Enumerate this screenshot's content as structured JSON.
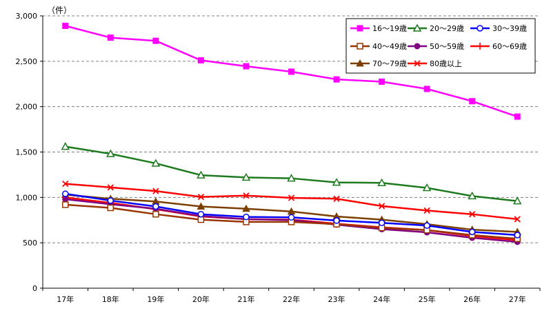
{
  "chart_data": {
    "type": "line",
    "unit_label": "（件）",
    "categories": [
      "17年",
      "18年",
      "19年",
      "20年",
      "21年",
      "22年",
      "23年",
      "24年",
      "25年",
      "26年",
      "27年"
    ],
    "ylim": [
      0,
      3000
    ],
    "yticks": [
      0,
      500,
      1000,
      1500,
      2000,
      2500,
      3000
    ],
    "ytick_labels": [
      "0",
      "500",
      "1,000",
      "1,500",
      "2,000",
      "2,500",
      "3,000"
    ],
    "grid": true,
    "legend_placement": "top-right",
    "series": [
      {
        "name": "16～19歳",
        "color": "#ff00ff",
        "marker": "square-filled",
        "values": [
          2890,
          2760,
          2725,
          2510,
          2445,
          2385,
          2300,
          2275,
          2195,
          2060,
          1890
        ]
      },
      {
        "name": "20～29歳",
        "color": "#1e7a1e",
        "marker": "triangle-open",
        "values": [
          1560,
          1480,
          1375,
          1245,
          1220,
          1210,
          1165,
          1160,
          1105,
          1015,
          960
        ]
      },
      {
        "name": "30～39歳",
        "color": "#0000ff",
        "marker": "circle-open",
        "values": [
          1040,
          965,
          900,
          815,
          785,
          780,
          745,
          720,
          690,
          620,
          585
        ]
      },
      {
        "name": "40～49歳",
        "color": "#993300",
        "marker": "square-open",
        "values": [
          920,
          885,
          815,
          755,
          730,
          730,
          705,
          665,
          640,
          585,
          545
        ]
      },
      {
        "name": "50～59歳",
        "color": "#800080",
        "marker": "circle-filled",
        "values": [
          980,
          925,
          875,
          795,
          760,
          750,
          700,
          650,
          615,
          555,
          510
        ]
      },
      {
        "name": "60～69歳",
        "color": "#ff0000",
        "marker": "plus",
        "values": [
          1000,
          940,
          870,
          790,
          760,
          755,
          710,
          670,
          640,
          575,
          530
        ]
      },
      {
        "name": "70～79歳",
        "color": "#7b3f00",
        "marker": "triangle-filled",
        "values": [
          1030,
          985,
          955,
          900,
          875,
          845,
          790,
          755,
          705,
          645,
          620
        ]
      },
      {
        "name": "80歳以上",
        "color": "#ff0000",
        "marker": "x",
        "values": [
          1150,
          1110,
          1070,
          1005,
          1020,
          995,
          985,
          905,
          855,
          815,
          760
        ]
      }
    ]
  }
}
